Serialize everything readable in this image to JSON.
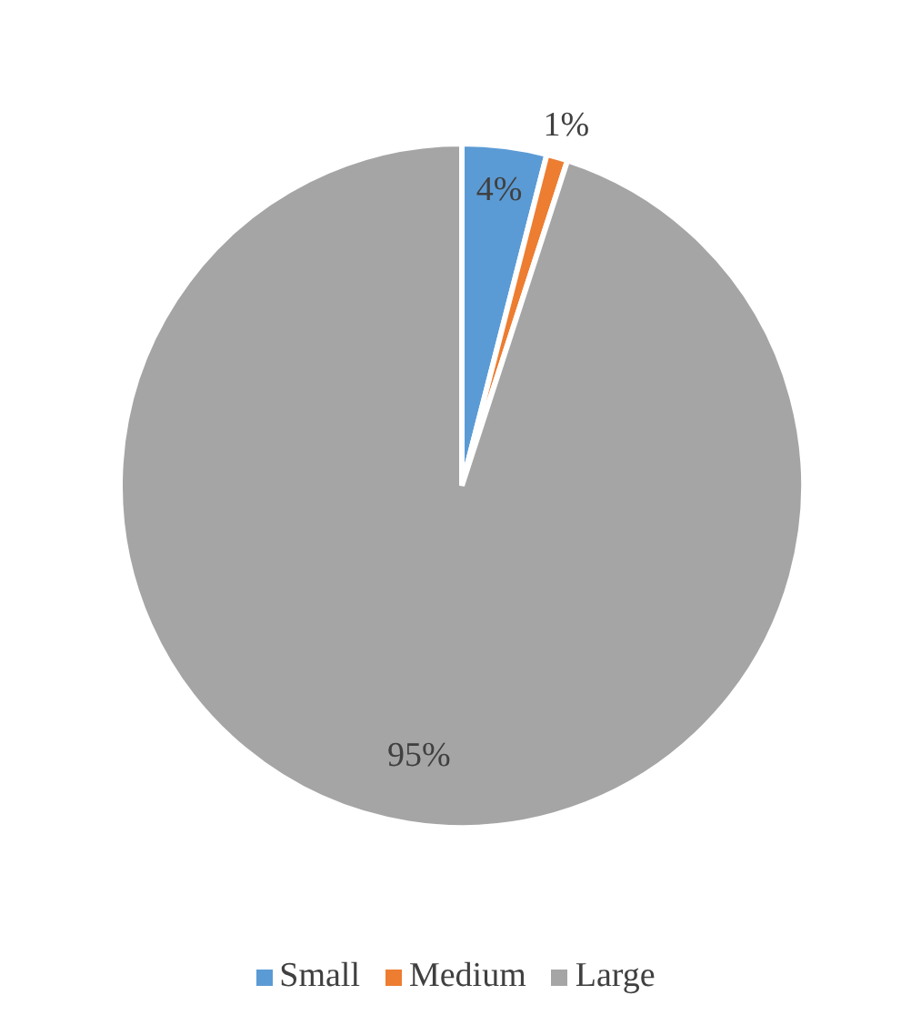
{
  "chart_data": {
    "type": "pie",
    "categories": [
      "Small",
      "Medium",
      "Large"
    ],
    "values": [
      4,
      1,
      95
    ],
    "colors": [
      "#5b9bd5",
      "#ed7d31",
      "#a5a5a5"
    ],
    "value_labels": [
      "4%",
      "1%",
      "95%"
    ],
    "legend": "bottom"
  }
}
